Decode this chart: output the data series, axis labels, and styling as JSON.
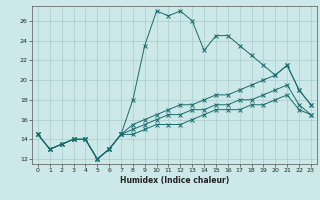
{
  "xlabel": "Humidex (Indice chaleur)",
  "xlim": [
    -0.5,
    23.5
  ],
  "ylim": [
    11.5,
    27.5
  ],
  "yticks": [
    12,
    14,
    16,
    18,
    20,
    22,
    24,
    26
  ],
  "xticks": [
    0,
    1,
    2,
    3,
    4,
    5,
    6,
    7,
    8,
    9,
    10,
    11,
    12,
    13,
    14,
    15,
    16,
    17,
    18,
    19,
    20,
    21,
    22,
    23
  ],
  "bg_color": "#cce8e8",
  "grid_color": "#aacccc",
  "line_color": "#1a6b6b",
  "line1": {
    "x": [
      0,
      1,
      2,
      3,
      4,
      5,
      6,
      7,
      8,
      9,
      10,
      11,
      12,
      13,
      14,
      15,
      16,
      17,
      18,
      19,
      20,
      21,
      22,
      23
    ],
    "y": [
      14.5,
      13.0,
      13.5,
      14.0,
      14.0,
      12.0,
      13.0,
      14.5,
      18.0,
      23.5,
      27.0,
      26.5,
      27.0,
      26.0,
      23.0,
      24.5,
      24.5,
      23.5,
      22.5,
      21.5,
      20.5,
      21.5,
      19.0,
      17.5
    ]
  },
  "line2": {
    "x": [
      0,
      1,
      2,
      3,
      4,
      5,
      6,
      7,
      8,
      9,
      10,
      11,
      12,
      13,
      14,
      15,
      16,
      17,
      18,
      19,
      20,
      21,
      22,
      23
    ],
    "y": [
      14.5,
      13.0,
      13.5,
      14.0,
      14.0,
      12.0,
      13.0,
      14.5,
      15.5,
      16.0,
      16.5,
      17.0,
      17.5,
      17.5,
      18.0,
      18.5,
      18.5,
      19.0,
      19.5,
      20.0,
      20.5,
      21.5,
      19.0,
      17.5
    ]
  },
  "line3": {
    "x": [
      0,
      1,
      2,
      3,
      4,
      5,
      6,
      7,
      8,
      9,
      10,
      11,
      12,
      13,
      14,
      15,
      16,
      17,
      18,
      19,
      20,
      21,
      22,
      23
    ],
    "y": [
      14.5,
      13.0,
      13.5,
      14.0,
      14.0,
      12.0,
      13.0,
      14.5,
      15.0,
      15.5,
      16.0,
      16.5,
      16.5,
      17.0,
      17.0,
      17.5,
      17.5,
      18.0,
      18.0,
      18.5,
      19.0,
      19.5,
      17.5,
      16.5
    ]
  },
  "line4": {
    "x": [
      0,
      1,
      2,
      3,
      4,
      5,
      6,
      7,
      8,
      9,
      10,
      11,
      12,
      13,
      14,
      15,
      16,
      17,
      18,
      19,
      20,
      21,
      22,
      23
    ],
    "y": [
      14.5,
      13.0,
      13.5,
      14.0,
      14.0,
      12.0,
      13.0,
      14.5,
      14.5,
      15.0,
      15.5,
      15.5,
      15.5,
      16.0,
      16.5,
      17.0,
      17.0,
      17.0,
      17.5,
      17.5,
      18.0,
      18.5,
      17.0,
      16.5
    ]
  }
}
